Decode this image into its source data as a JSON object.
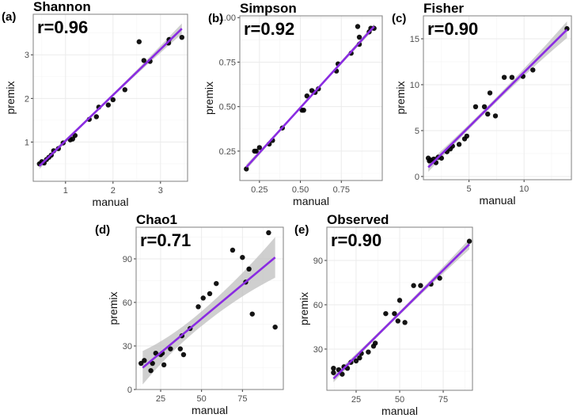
{
  "colors": {
    "fit_line": "#8a2be2",
    "band": "#bfbfbf",
    "point": "#000000",
    "grid": "#ebebeb",
    "border": "#7f7f7f"
  },
  "chart_data": [
    {
      "type": "scatter",
      "panel_label": "(a)",
      "title": "Shannon",
      "annotation": "r=0.96",
      "xlabel": "manual",
      "ylabel": "premix",
      "xlim": [
        0.32,
        3.57
      ],
      "ylim": [
        0.1,
        3.93
      ],
      "xticks": [
        1,
        2,
        3
      ],
      "yticks": [
        1,
        2,
        3
      ],
      "xtick_labels": [
        "1",
        "2",
        "3"
      ],
      "ytick_labels": [
        "1",
        "2",
        "3"
      ],
      "points": [
        [
          0.45,
          0.5
        ],
        [
          0.5,
          0.55
        ],
        [
          0.55,
          0.52
        ],
        [
          0.6,
          0.6
        ],
        [
          0.65,
          0.65
        ],
        [
          0.7,
          0.7
        ],
        [
          0.75,
          0.8
        ],
        [
          0.85,
          0.85
        ],
        [
          0.95,
          0.98
        ],
        [
          1.1,
          1.05
        ],
        [
          1.15,
          1.07
        ],
        [
          1.2,
          1.15
        ],
        [
          1.5,
          1.52
        ],
        [
          1.65,
          1.58
        ],
        [
          1.7,
          1.8
        ],
        [
          1.9,
          1.85
        ],
        [
          2.0,
          1.97
        ],
        [
          2.25,
          2.2
        ],
        [
          2.55,
          3.3
        ],
        [
          2.65,
          2.87
        ],
        [
          2.78,
          2.85
        ],
        [
          3.17,
          3.27
        ],
        [
          3.18,
          3.35
        ],
        [
          3.45,
          3.4
        ]
      ],
      "fit": {
        "x": [
          0.45,
          3.45
        ],
        "y": [
          0.45,
          3.6
        ],
        "band_halfwidth": [
          0.07,
          0.03,
          0.12
        ]
      }
    },
    {
      "type": "scatter",
      "panel_label": "(b)",
      "title": "Simpson",
      "annotation": "r=0.92",
      "xlabel": "manual",
      "ylabel": "premix",
      "xlim": [
        0.13,
        1.0
      ],
      "ylim": [
        0.085,
        1.01
      ],
      "xticks": [
        0.25,
        0.5,
        0.75
      ],
      "yticks": [
        0.25,
        0.5,
        0.75,
        1.0
      ],
      "xtick_labels": [
        "0.25",
        "0.50",
        "0.75"
      ],
      "ytick_labels": [
        "0.25",
        "0.50",
        "0.75",
        "1.00"
      ],
      "points": [
        [
          0.17,
          0.15
        ],
        [
          0.22,
          0.25
        ],
        [
          0.23,
          0.25
        ],
        [
          0.25,
          0.27
        ],
        [
          0.31,
          0.29
        ],
        [
          0.33,
          0.31
        ],
        [
          0.39,
          0.38
        ],
        [
          0.51,
          0.48
        ],
        [
          0.52,
          0.48
        ],
        [
          0.54,
          0.56
        ],
        [
          0.57,
          0.59
        ],
        [
          0.59,
          0.58
        ],
        [
          0.61,
          0.6
        ],
        [
          0.72,
          0.7
        ],
        [
          0.73,
          0.74
        ],
        [
          0.81,
          0.8
        ],
        [
          0.85,
          0.95
        ],
        [
          0.86,
          0.89
        ],
        [
          0.86,
          0.85
        ],
        [
          0.92,
          0.92
        ],
        [
          0.93,
          0.94
        ],
        [
          0.95,
          0.94
        ]
      ],
      "fit": {
        "x": [
          0.17,
          0.95
        ],
        "y": [
          0.16,
          0.95
        ],
        "band_halfwidth": [
          0.015,
          0.007,
          0.015
        ]
      }
    },
    {
      "type": "scatter",
      "panel_label": "(c)",
      "title": "Fisher",
      "annotation": "r=0.90",
      "xlabel": "manual",
      "ylabel": "premix",
      "xlim": [
        0.86,
        14.3
      ],
      "ylim": [
        -0.35,
        17.5
      ],
      "xticks": [
        5,
        10
      ],
      "yticks": [
        0,
        5,
        10,
        15
      ],
      "xtick_labels": [
        "5",
        "10"
      ],
      "ytick_labels": [
        "0",
        "5",
        "10",
        "15"
      ],
      "points": [
        [
          1.3,
          2.0
        ],
        [
          1.4,
          1.7
        ],
        [
          1.5,
          1.8
        ],
        [
          1.8,
          1.9
        ],
        [
          2.0,
          1.5
        ],
        [
          2.2,
          2.1
        ],
        [
          2.5,
          2.0
        ],
        [
          3.0,
          2.7
        ],
        [
          3.3,
          3.0
        ],
        [
          3.5,
          3.3
        ],
        [
          4.1,
          3.5
        ],
        [
          4.6,
          4.1
        ],
        [
          4.8,
          4.4
        ],
        [
          5.6,
          7.6
        ],
        [
          6.4,
          7.6
        ],
        [
          6.7,
          6.8
        ],
        [
          6.9,
          9.1
        ],
        [
          7.4,
          6.6
        ],
        [
          8.2,
          10.8
        ],
        [
          8.9,
          10.8
        ],
        [
          9.9,
          10.9
        ],
        [
          10.8,
          11.6
        ],
        [
          13.9,
          16.1
        ]
      ],
      "fit": {
        "x": [
          1.3,
          13.9
        ],
        "y": [
          1.0,
          16.0
        ],
        "band_halfwidth": [
          0.5,
          0.25,
          0.9
        ]
      }
    },
    {
      "type": "scatter",
      "panel_label": "(d)",
      "title": "Chao1",
      "annotation": "r=0.71",
      "xlabel": "manual",
      "ylabel": "premix",
      "xlim": [
        10,
        100
      ],
      "ylim": [
        0,
        111.8
      ],
      "xticks": [
        25,
        50,
        75
      ],
      "yticks": [
        0,
        30,
        60,
        90
      ],
      "xtick_labels": [
        "25",
        "50",
        "75"
      ],
      "ytick_labels": [
        "0",
        "30",
        "60",
        "90"
      ],
      "points": [
        [
          13,
          18
        ],
        [
          15,
          20
        ],
        [
          19,
          13
        ],
        [
          20,
          18
        ],
        [
          22,
          25
        ],
        [
          25,
          24
        ],
        [
          26,
          25
        ],
        [
          27,
          17
        ],
        [
          31,
          28
        ],
        [
          37,
          28
        ],
        [
          38,
          37
        ],
        [
          39,
          24
        ],
        [
          43,
          42
        ],
        [
          48,
          57
        ],
        [
          51,
          63
        ],
        [
          55,
          66
        ],
        [
          59,
          73
        ],
        [
          69,
          96
        ],
        [
          75,
          91
        ],
        [
          77,
          74
        ],
        [
          79,
          83
        ],
        [
          81,
          52
        ],
        [
          91,
          108
        ],
        [
          95,
          43
        ]
      ],
      "fit": {
        "x": [
          14,
          95
        ],
        "y": [
          15,
          91
        ],
        "band_halfwidth": [
          11.5,
          5,
          14
        ]
      }
    },
    {
      "type": "scatter",
      "panel_label": "(e)",
      "title": "Observed",
      "annotation": "r=0.90",
      "xlabel": "manual",
      "ylabel": "premix",
      "xlim": [
        8.2,
        91.8
      ],
      "ylim": [
        2.1,
        112.5
      ],
      "xticks": [
        25,
        50,
        75
      ],
      "yticks": [
        30,
        60,
        90
      ],
      "xtick_labels": [
        "25",
        "50",
        "75"
      ],
      "ytick_labels": [
        "30",
        "60",
        "90"
      ],
      "points": [
        [
          12,
          17
        ],
        [
          12,
          14
        ],
        [
          15,
          16
        ],
        [
          17,
          13
        ],
        [
          18,
          18
        ],
        [
          20,
          17
        ],
        [
          22,
          21
        ],
        [
          25,
          22
        ],
        [
          27,
          24
        ],
        [
          28,
          27
        ],
        [
          32,
          28
        ],
        [
          35,
          32
        ],
        [
          36,
          34
        ],
        [
          42,
          54
        ],
        [
          47,
          54
        ],
        [
          49,
          49
        ],
        [
          50,
          63
        ],
        [
          53,
          48
        ],
        [
          58,
          73
        ],
        [
          62,
          73
        ],
        [
          68,
          74
        ],
        [
          73,
          78
        ],
        [
          90,
          103
        ]
      ],
      "fit": {
        "x": [
          12,
          90
        ],
        "y": [
          10,
          101
        ],
        "band_halfwidth": [
          2.5,
          1.2,
          3.5
        ]
      }
    }
  ]
}
